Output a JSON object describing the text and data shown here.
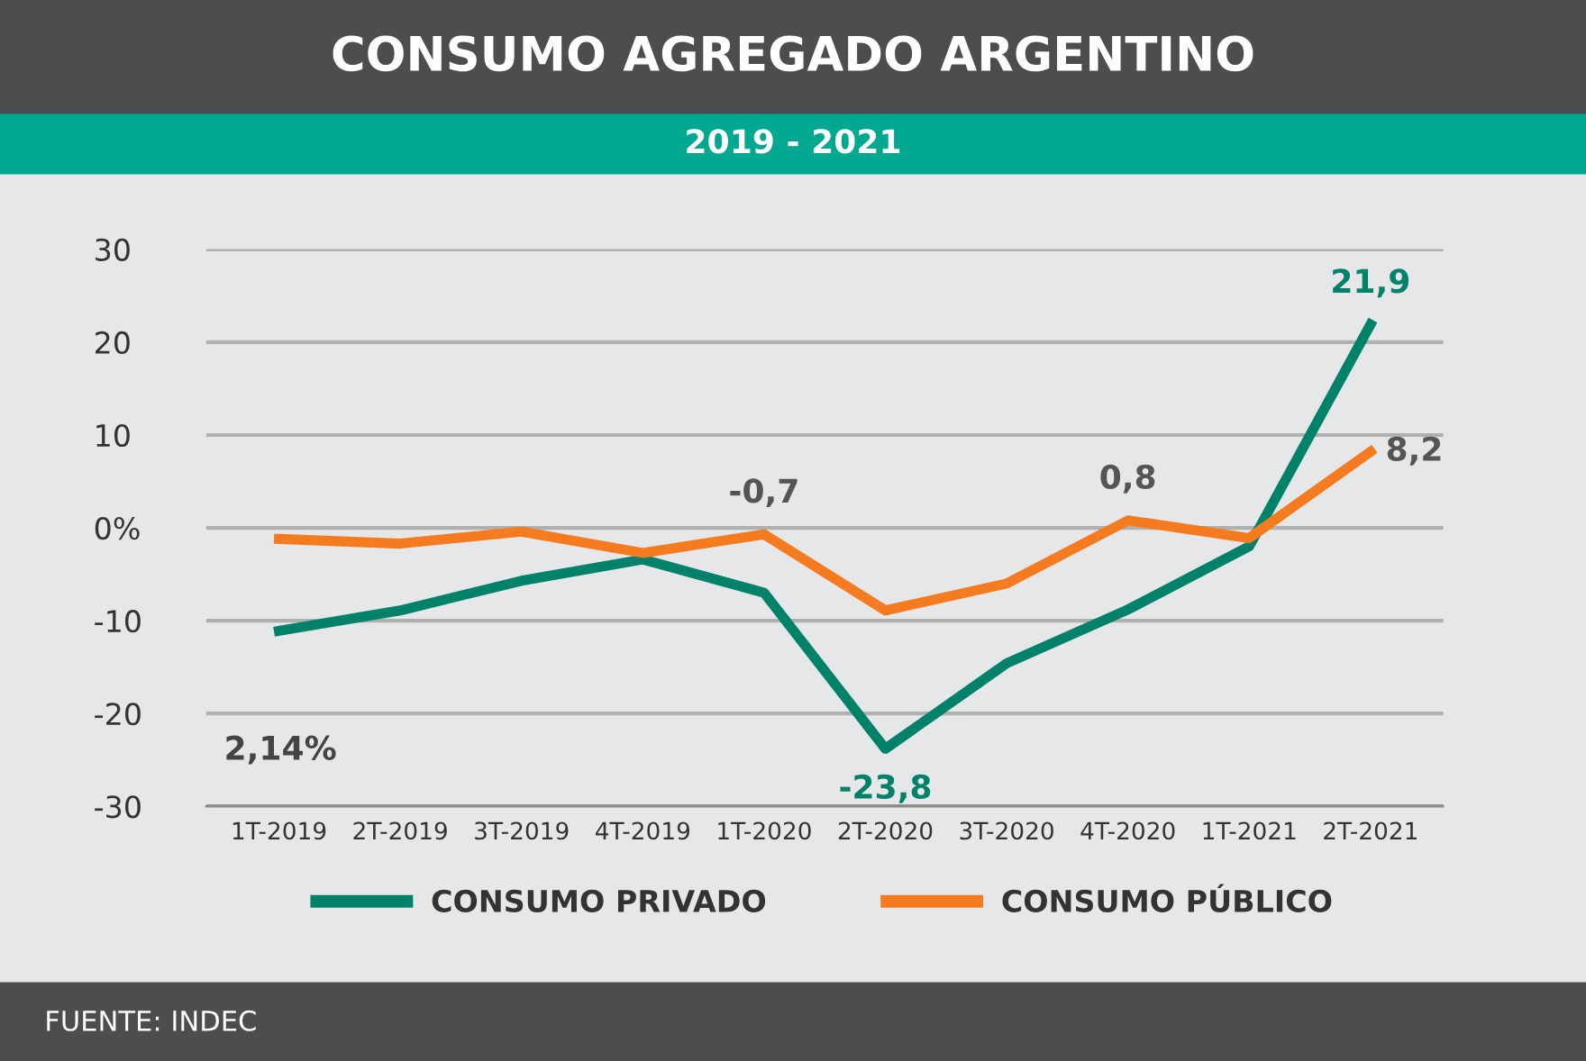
{
  "chart_data": {
    "type": "line",
    "title": "CONSUMO AGREGADO ARGENTINO",
    "subtitle": "2019 - 2021",
    "categories": [
      "1T-2019",
      "2T-2019",
      "3T-2019",
      "4T-2019",
      "1T-2020",
      "2T-2020",
      "3T-2020",
      "4T-2020",
      "1T-2021",
      "2T-2021"
    ],
    "series": [
      {
        "name": "CONSUMO PRIVADO",
        "color": "#00826a",
        "values": [
          -11.1,
          -8.9,
          -5.7,
          -3.4,
          -7.0,
          -23.8,
          -14.6,
          -8.8,
          -2.0,
          21.9
        ],
        "value_labels": [
          null,
          null,
          null,
          null,
          null,
          "-23,8",
          null,
          null,
          null,
          "21,9"
        ]
      },
      {
        "name": "CONSUMO PÚBLICO",
        "color": "#f47b20",
        "values": [
          -1.2,
          -1.7,
          -0.4,
          -2.7,
          -0.7,
          -8.9,
          -6.0,
          0.8,
          -1.1,
          8.2
        ],
        "value_labels": [
          null,
          null,
          null,
          null,
          "-0,7",
          null,
          null,
          "0,8",
          null,
          "8,2"
        ]
      }
    ],
    "ylim": [
      -30,
      30
    ],
    "yticks": [
      -30,
      -20,
      -10,
      {
        "value": 0,
        "label": "0%"
      },
      10,
      20,
      30
    ],
    "grid": "y",
    "legend": "bottom",
    "marker": "none",
    "line_style": "solid",
    "annotations": [
      "2,14%",
      "FUENTE: INDEC"
    ]
  }
}
